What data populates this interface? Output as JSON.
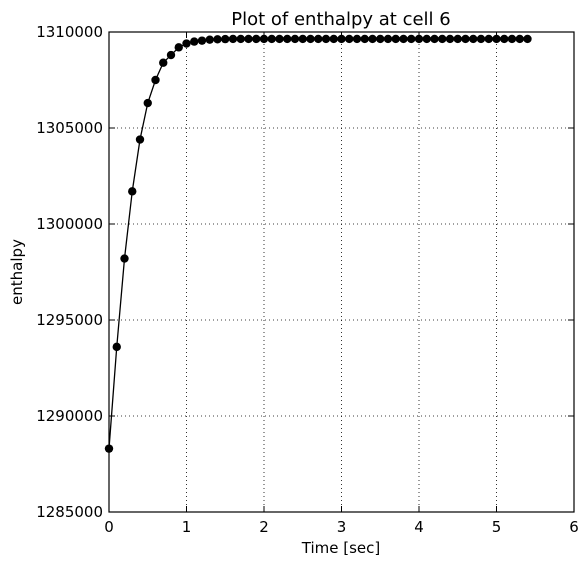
{
  "chart_data": {
    "type": "line",
    "title": "Plot of enthalpy at cell 6",
    "xlabel": "Time [sec]",
    "ylabel": "enthalpy",
    "xlim": [
      0,
      6
    ],
    "ylim": [
      1285000,
      1310000
    ],
    "xticks": [
      0,
      1,
      2,
      3,
      4,
      5,
      6
    ],
    "yticks": [
      1285000,
      1290000,
      1295000,
      1300000,
      1305000,
      1310000
    ],
    "grid": true,
    "marker": "circle",
    "line_color": "#000000",
    "series": [
      {
        "x": [
          0.0,
          0.1,
          0.2,
          0.3,
          0.4,
          0.5,
          0.6,
          0.7,
          0.8,
          0.9,
          1.0,
          1.1,
          1.2,
          1.3,
          1.4,
          1.5,
          1.6,
          1.7,
          1.8,
          1.9,
          2.0,
          2.1,
          2.2,
          2.3,
          2.4,
          2.5,
          2.6,
          2.7,
          2.8,
          2.9,
          3.0,
          3.1,
          3.2,
          3.3,
          3.4,
          3.5,
          3.6,
          3.7,
          3.8,
          3.9,
          4.0,
          4.1,
          4.2,
          4.3,
          4.4,
          4.5,
          4.6,
          4.7,
          4.8,
          4.9,
          5.0,
          5.1,
          5.2,
          5.3,
          5.4
        ],
        "y": [
          1288300,
          1293600,
          1298200,
          1301700,
          1304400,
          1306300,
          1307500,
          1308400,
          1308800,
          1309200,
          1309400,
          1309500,
          1309550,
          1309600,
          1309620,
          1309630,
          1309640,
          1309640,
          1309640,
          1309640,
          1309640,
          1309640,
          1309640,
          1309640,
          1309640,
          1309640,
          1309640,
          1309640,
          1309640,
          1309640,
          1309640,
          1309640,
          1309640,
          1309640,
          1309640,
          1309640,
          1309640,
          1309640,
          1309640,
          1309640,
          1309640,
          1309640,
          1309640,
          1309640,
          1309640,
          1309640,
          1309640,
          1309640,
          1309640,
          1309640,
          1309640,
          1309640,
          1309640,
          1309640,
          1309640
        ]
      }
    ]
  }
}
